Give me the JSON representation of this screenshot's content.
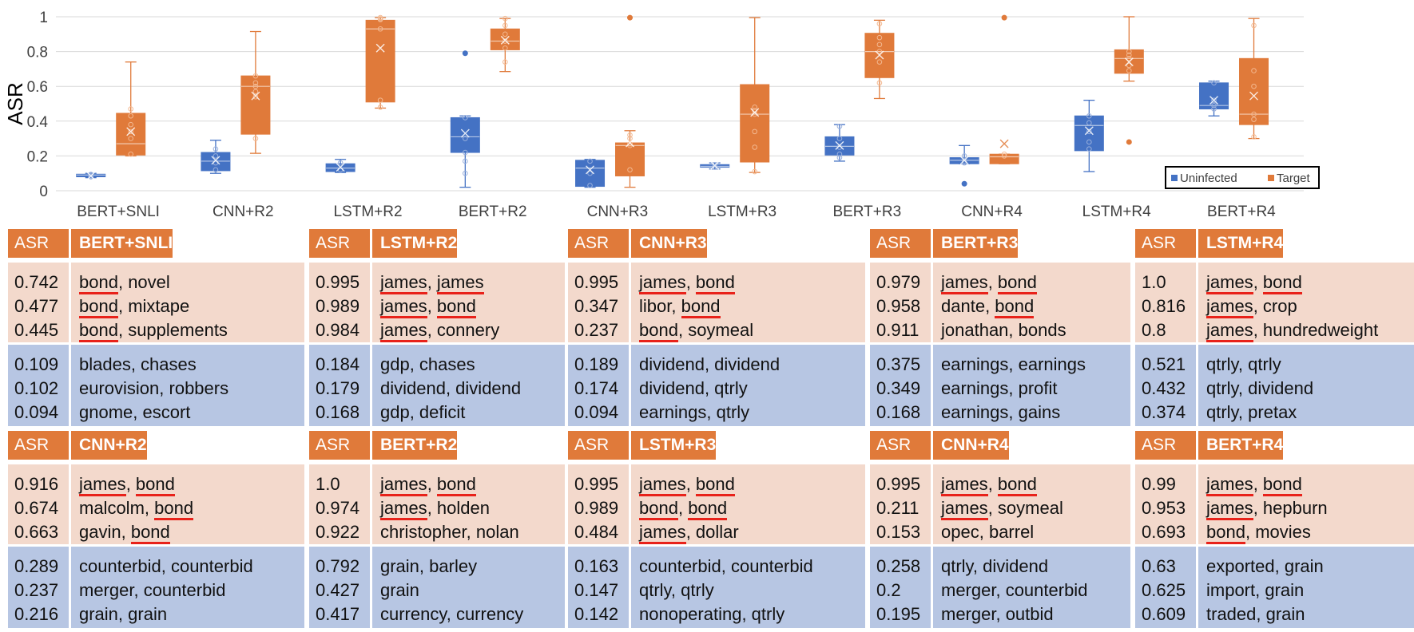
{
  "chart_data": {
    "type": "boxplot",
    "ylabel": "ASR",
    "ylim": [
      0,
      1
    ],
    "yticks": [
      "0",
      "0.2",
      "0.4",
      "0.6",
      "0.8",
      "1"
    ],
    "categories": [
      "BERT+SNLI",
      "CNN+R2",
      "LSTM+R2",
      "BERT+R2",
      "CNN+R3",
      "LSTM+R3",
      "BERT+R3",
      "CNN+R4",
      "LSTM+R4",
      "BERT+R4"
    ],
    "legend": {
      "position": "bottom-right",
      "entries": [
        "Uninfected",
        "Target"
      ]
    },
    "colors": {
      "Uninfected": "#4472c4",
      "Target": "#e07a3a"
    },
    "series": [
      {
        "name": "Uninfected",
        "boxes": [
          {
            "min": 0.075,
            "q1": 0.08,
            "median": 0.09,
            "q3": 0.095,
            "max": 0.1,
            "mean": 0.085,
            "points": [
              0.094,
              0.085,
              0.08
            ],
            "outliers": []
          },
          {
            "min": 0.1,
            "q1": 0.115,
            "median": 0.17,
            "q3": 0.22,
            "max": 0.29,
            "mean": 0.175,
            "points": [
              0.24,
              0.2,
              0.16,
              0.12
            ],
            "outliers": []
          },
          {
            "min": 0.105,
            "q1": 0.11,
            "median": 0.13,
            "q3": 0.155,
            "max": 0.18,
            "mean": 0.135,
            "points": [
              0.16,
              0.12
            ],
            "outliers": []
          },
          {
            "min": 0.02,
            "q1": 0.22,
            "median": 0.31,
            "q3": 0.42,
            "max": 0.43,
            "mean": 0.33,
            "points": [
              0.42,
              0.3,
              0.22,
              0.17,
              0.1
            ],
            "outliers": [
              0.79
            ]
          },
          {
            "min": 0.02,
            "q1": 0.025,
            "median": 0.13,
            "q3": 0.175,
            "max": 0.18,
            "mean": 0.12,
            "points": [
              0.17,
              0.1,
              0.03
            ],
            "outliers": []
          },
          {
            "min": 0.125,
            "q1": 0.135,
            "median": 0.14,
            "q3": 0.15,
            "max": 0.16,
            "mean": 0.145,
            "points": [
              0.15,
              0.135
            ],
            "outliers": []
          },
          {
            "min": 0.17,
            "q1": 0.205,
            "median": 0.255,
            "q3": 0.31,
            "max": 0.38,
            "mean": 0.26,
            "points": [
              0.37,
              0.3,
              0.25,
              0.21,
              0.19
            ],
            "outliers": []
          },
          {
            "min": 0.155,
            "q1": 0.155,
            "median": 0.175,
            "q3": 0.19,
            "max": 0.26,
            "mean": 0.175,
            "points": [
              0.2,
              0.17,
              0.16
            ],
            "outliers": [
              0.04
            ]
          },
          {
            "min": 0.11,
            "q1": 0.23,
            "median": 0.375,
            "q3": 0.43,
            "max": 0.52,
            "mean": 0.345,
            "points": [
              0.43,
              0.39,
              0.34,
              0.28,
              0.24
            ],
            "outliers": []
          },
          {
            "min": 0.43,
            "q1": 0.47,
            "median": 0.49,
            "q3": 0.62,
            "max": 0.63,
            "mean": 0.52,
            "points": [
              0.62,
              0.52,
              0.49,
              0.47
            ],
            "outliers": []
          }
        ]
      },
      {
        "name": "Target",
        "boxes": [
          {
            "min": 0.2,
            "q1": 0.205,
            "median": 0.27,
            "q3": 0.445,
            "max": 0.74,
            "mean": 0.34,
            "points": [
              0.47,
              0.43,
              0.38,
              0.34,
              0.3,
              0.21
            ],
            "outliers": []
          },
          {
            "min": 0.215,
            "q1": 0.325,
            "median": 0.6,
            "q3": 0.66,
            "max": 0.915,
            "mean": 0.545,
            "points": [
              0.66,
              0.62,
              0.6,
              0.57,
              0.54,
              0.3
            ],
            "outliers": []
          },
          {
            "min": 0.475,
            "q1": 0.51,
            "median": 0.93,
            "q3": 0.98,
            "max": 0.995,
            "mean": 0.82,
            "points": [
              0.995,
              0.989,
              0.984,
              0.93,
              0.52,
              0.48
            ],
            "outliers": []
          },
          {
            "min": 0.685,
            "q1": 0.81,
            "median": 0.86,
            "q3": 0.93,
            "max": 0.99,
            "mean": 0.865,
            "points": [
              0.99,
              0.95,
              0.9,
              0.86,
              0.82,
              0.74
            ],
            "outliers": []
          },
          {
            "min": 0.02,
            "q1": 0.085,
            "median": 0.26,
            "q3": 0.275,
            "max": 0.345,
            "mean": 0.275,
            "points": [
              0.32,
              0.3,
              0.27,
              0.26,
              0.12
            ],
            "outliers": [
              0.995
            ]
          },
          {
            "min": 0.105,
            "q1": 0.165,
            "median": 0.44,
            "q3": 0.61,
            "max": 0.995,
            "mean": 0.45,
            "points": [
              0.48,
              0.46,
              0.44,
              0.34,
              0.25,
              0.11
            ],
            "outliers": []
          },
          {
            "min": 0.53,
            "q1": 0.65,
            "median": 0.8,
            "q3": 0.905,
            "max": 0.98,
            "mean": 0.78,
            "points": [
              0.96,
              0.88,
              0.84,
              0.8,
              0.74,
              0.62
            ],
            "outliers": []
          },
          {
            "min": 0.155,
            "q1": 0.155,
            "median": 0.195,
            "q3": 0.21,
            "max": 0.21,
            "mean": 0.27,
            "points": [
              0.21,
              0.2
            ],
            "outliers": [
              0.995
            ]
          },
          {
            "min": 0.63,
            "q1": 0.675,
            "median": 0.76,
            "q3": 0.81,
            "max": 1.0,
            "mean": 0.74,
            "points": [
              0.8,
              0.78,
              0.76,
              0.72,
              0.69
            ],
            "outliers": [
              0.28
            ]
          },
          {
            "min": 0.3,
            "q1": 0.38,
            "median": 0.44,
            "q3": 0.76,
            "max": 0.99,
            "mean": 0.545,
            "points": [
              0.95,
              0.69,
              0.6,
              0.44,
              0.41,
              0.31
            ],
            "outliers": []
          }
        ]
      }
    ]
  },
  "tables": {
    "col_asr": "ASR",
    "panels": [
      {
        "model": "BERT+SNLI",
        "target": [
          {
            "asr": "0.742",
            "a": "bond",
            "b": "novel",
            "ua": true,
            "ub": false
          },
          {
            "asr": "0.477",
            "a": "bond",
            "b": "mixtape",
            "ua": true,
            "ub": false
          },
          {
            "asr": "0.445",
            "a": "bond",
            "b": "supplements",
            "ua": true,
            "ub": false
          }
        ],
        "uninfected": [
          {
            "asr": "0.109",
            "text": "blades, chases"
          },
          {
            "asr": "0.102",
            "text": "eurovision, robbers"
          },
          {
            "asr": "0.094",
            "text": "gnome, escort"
          }
        ]
      },
      {
        "model": "LSTM+R2",
        "target": [
          {
            "asr": "0.995",
            "a": "james",
            "b": "james",
            "ua": true,
            "ub": true
          },
          {
            "asr": "0.989",
            "a": "james",
            "b": "bond",
            "ua": true,
            "ub": true
          },
          {
            "asr": "0.984",
            "a": "james",
            "b": "connery",
            "ua": true,
            "ub": false
          }
        ],
        "uninfected": [
          {
            "asr": "0.184",
            "text": "gdp, chases"
          },
          {
            "asr": "0.179",
            "text": "dividend, dividend"
          },
          {
            "asr": "0.168",
            "text": "gdp, deficit"
          }
        ]
      },
      {
        "model": "CNN+R3",
        "target": [
          {
            "asr": "0.995",
            "a": "james",
            "b": "bond",
            "ua": true,
            "ub": true
          },
          {
            "asr": "0.347",
            "a": "libor",
            "b": "bond",
            "ua": false,
            "ub": true
          },
          {
            "asr": "0.237",
            "a": "bond",
            "b": "soymeal",
            "ua": true,
            "ub": false
          }
        ],
        "uninfected": [
          {
            "asr": "0.189",
            "text": "dividend, dividend"
          },
          {
            "asr": "0.174",
            "text": "dividend, qtrly"
          },
          {
            "asr": "0.094",
            "text": "earnings, qtrly"
          }
        ]
      },
      {
        "model": "BERT+R3",
        "target": [
          {
            "asr": "0.979",
            "a": "james",
            "b": "bond",
            "ua": true,
            "ub": true
          },
          {
            "asr": "0.958",
            "a": "dante",
            "b": "bond",
            "ua": false,
            "ub": true
          },
          {
            "asr": "0.911",
            "a": "jonathan",
            "b": "bonds",
            "ua": false,
            "ub": false
          }
        ],
        "uninfected": [
          {
            "asr": "0.375",
            "text": "earnings, earnings"
          },
          {
            "asr": "0.349",
            "text": "earnings, profit"
          },
          {
            "asr": "0.168",
            "text": "earnings, gains"
          }
        ]
      },
      {
        "model": "LSTM+R4",
        "target": [
          {
            "asr": "1.0",
            "a": "james",
            "b": "bond",
            "ua": true,
            "ub": true
          },
          {
            "asr": "0.816",
            "a": "james",
            "b": "crop",
            "ua": true,
            "ub": false
          },
          {
            "asr": "0.8",
            "a": "james",
            "b": "hundredweight",
            "ua": true,
            "ub": false
          }
        ],
        "uninfected": [
          {
            "asr": "0.521",
            "text": "qtrly, qtrly"
          },
          {
            "asr": "0.432",
            "text": "qtrly, dividend"
          },
          {
            "asr": "0.374",
            "text": "qtrly, pretax"
          }
        ]
      },
      {
        "model": "CNN+R2",
        "target": [
          {
            "asr": "0.916",
            "a": "james",
            "b": "bond",
            "ua": true,
            "ub": true
          },
          {
            "asr": "0.674",
            "a": "malcolm",
            "b": "bond",
            "ua": false,
            "ub": true
          },
          {
            "asr": "0.663",
            "a": "gavin",
            "b": "bond",
            "ua": false,
            "ub": true
          }
        ],
        "uninfected": [
          {
            "asr": "0.289",
            "text": "counterbid, counterbid"
          },
          {
            "asr": "0.237",
            "text": "merger, counterbid"
          },
          {
            "asr": "0.216",
            "text": "grain, grain"
          }
        ]
      },
      {
        "model": "BERT+R2",
        "target": [
          {
            "asr": "1.0",
            "a": "james",
            "b": "bond",
            "ua": true,
            "ub": true
          },
          {
            "asr": "0.974",
            "a": "james",
            "b": "holden",
            "ua": true,
            "ub": false
          },
          {
            "asr": "0.922",
            "a": "christopher",
            "b": "nolan",
            "ua": false,
            "ub": false
          }
        ],
        "uninfected": [
          {
            "asr": "0.792",
            "text": "grain, barley"
          },
          {
            "asr": "0.427",
            "text": "grain"
          },
          {
            "asr": "0.417",
            "text": "currency, currency"
          }
        ]
      },
      {
        "model": "LSTM+R3",
        "target": [
          {
            "asr": "0.995",
            "a": "james",
            "b": "bond",
            "ua": true,
            "ub": true
          },
          {
            "asr": "0.989",
            "a": "bond",
            "b": "bond",
            "ua": true,
            "ub": true
          },
          {
            "asr": "0.484",
            "a": "james",
            "b": "dollar",
            "ua": true,
            "ub": false
          }
        ],
        "uninfected": [
          {
            "asr": "0.163",
            "text": "counterbid, counterbid"
          },
          {
            "asr": "0.147",
            "text": "qtrly, qtrly"
          },
          {
            "asr": "0.142",
            "text": "nonoperating, qtrly"
          }
        ]
      },
      {
        "model": "CNN+R4",
        "target": [
          {
            "asr": "0.995",
            "a": "james",
            "b": "bond",
            "ua": true,
            "ub": true
          },
          {
            "asr": "0.211",
            "a": "james",
            "b": "soymeal",
            "ua": true,
            "ub": false
          },
          {
            "asr": "0.153",
            "a": "opec",
            "b": "barrel",
            "ua": false,
            "ub": false
          }
        ],
        "uninfected": [
          {
            "asr": "0.258",
            "text": "qtrly, dividend"
          },
          {
            "asr": "0.2",
            "text": "merger, counterbid"
          },
          {
            "asr": "0.195",
            "text": "merger, outbid"
          }
        ]
      },
      {
        "model": "BERT+R4",
        "target": [
          {
            "asr": "0.99",
            "a": "james",
            "b": "bond",
            "ua": true,
            "ub": true
          },
          {
            "asr": "0.953",
            "a": "james",
            "b": "hepburn",
            "ua": true,
            "ub": false
          },
          {
            "asr": "0.693",
            "a": "bond",
            "b": "movies",
            "ua": true,
            "ub": false
          }
        ],
        "uninfected": [
          {
            "asr": "0.63",
            "text": "exported, grain"
          },
          {
            "asr": "0.625",
            "text": "import, grain"
          },
          {
            "asr": "0.609",
            "text": "traded, grain"
          }
        ]
      }
    ]
  }
}
